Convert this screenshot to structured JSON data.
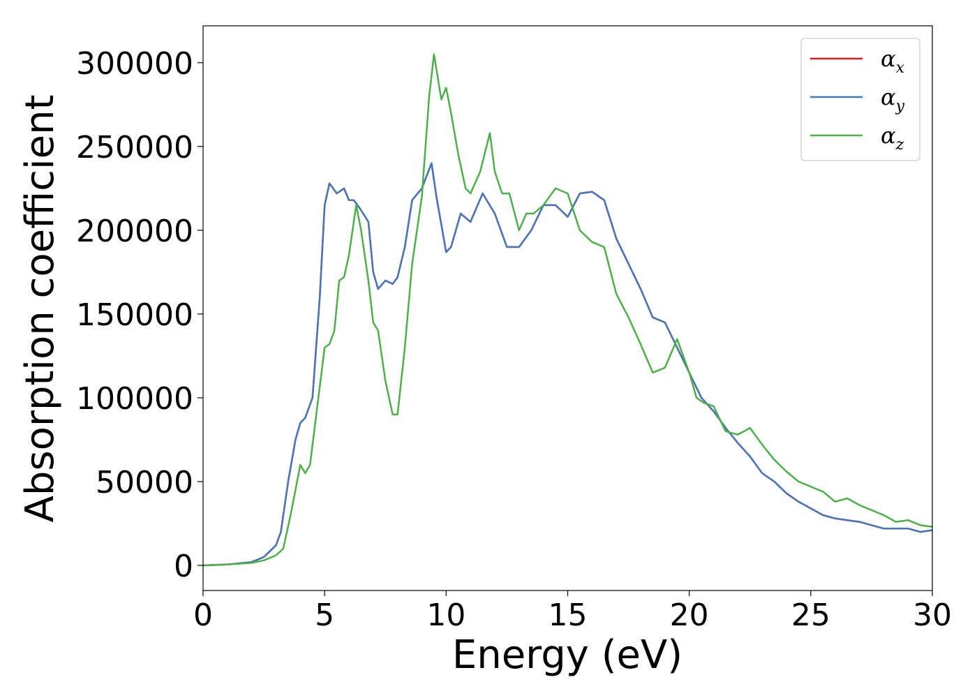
{
  "chart_data": {
    "type": "line",
    "xlabel": "Energy (eV)",
    "ylabel": "Absorption coefficient",
    "xlim": [
      0,
      30
    ],
    "ylim": [
      -15000,
      322000
    ],
    "x_ticks": [
      0,
      5,
      10,
      15,
      20,
      25,
      30
    ],
    "y_ticks": [
      0,
      50000,
      100000,
      150000,
      200000,
      250000,
      300000
    ],
    "grid": false,
    "legend_position": "top-right",
    "colors": {
      "alpha_x": "#e41a1c",
      "alpha_y": "#4478b8",
      "alpha_z": "#4daf4a"
    },
    "legend": [
      {
        "base": "α",
        "sub": "x",
        "color": "#e41a1c"
      },
      {
        "base": "α",
        "sub": "y",
        "color": "#4478b8"
      },
      {
        "base": "α",
        "sub": "z",
        "color": "#4daf4a"
      }
    ],
    "series": [
      {
        "key": "alpha_x",
        "x": [
          0,
          1,
          2,
          2.5,
          3,
          3.2,
          3.5,
          3.8,
          4,
          4.2,
          4.5,
          4.8,
          5,
          5.2,
          5.5,
          5.8,
          6,
          6.2,
          6.5,
          6.8,
          7,
          7.2,
          7.5,
          7.8,
          8,
          8.3,
          8.6,
          9,
          9.4,
          9.6,
          10,
          10.2,
          10.6,
          11,
          11.5,
          12,
          12.5,
          13,
          13.5,
          14,
          14.5,
          15,
          15.5,
          16,
          16.5,
          17,
          17.5,
          18,
          18.5,
          19,
          19.5,
          20,
          20.5,
          21,
          21.5,
          22,
          22.5,
          23,
          23.5,
          24,
          24.5,
          25,
          25.5,
          26,
          26.5,
          27,
          27.5,
          28,
          28.5,
          29,
          29.5,
          30
        ],
        "values": [
          0,
          500,
          2000,
          5000,
          12000,
          20000,
          50000,
          75000,
          85000,
          88000,
          100000,
          160000,
          215000,
          228000,
          222000,
          225000,
          218000,
          218000,
          212000,
          205000,
          175000,
          165000,
          170000,
          168000,
          172000,
          190000,
          218000,
          225000,
          240000,
          220000,
          187000,
          190000,
          210000,
          205000,
          222000,
          210000,
          190000,
          190000,
          200000,
          215000,
          215000,
          208000,
          222000,
          223000,
          218000,
          195000,
          180000,
          165000,
          148000,
          145000,
          130000,
          115000,
          100000,
          92000,
          82000,
          73000,
          65000,
          55000,
          50000,
          43000,
          38000,
          34000,
          30000,
          28000,
          27000,
          26000,
          24000,
          22000,
          22000,
          22000,
          20000,
          21000
        ]
      },
      {
        "key": "alpha_y",
        "x": [
          0,
          1,
          2,
          2.5,
          3,
          3.2,
          3.5,
          3.8,
          4,
          4.2,
          4.5,
          4.8,
          5,
          5.2,
          5.5,
          5.8,
          6,
          6.2,
          6.5,
          6.8,
          7,
          7.2,
          7.5,
          7.8,
          8,
          8.3,
          8.6,
          9,
          9.4,
          9.6,
          10,
          10.2,
          10.6,
          11,
          11.5,
          12,
          12.5,
          13,
          13.5,
          14,
          14.5,
          15,
          15.5,
          16,
          16.5,
          17,
          17.5,
          18,
          18.5,
          19,
          19.5,
          20,
          20.5,
          21,
          21.5,
          22,
          22.5,
          23,
          23.5,
          24,
          24.5,
          25,
          25.5,
          26,
          26.5,
          27,
          27.5,
          28,
          28.5,
          29,
          29.5,
          30
        ],
        "values": [
          0,
          500,
          2000,
          5000,
          12000,
          20000,
          50000,
          75000,
          85000,
          88000,
          100000,
          160000,
          215000,
          228000,
          222000,
          225000,
          218000,
          218000,
          212000,
          205000,
          175000,
          165000,
          170000,
          168000,
          172000,
          190000,
          218000,
          225000,
          240000,
          220000,
          187000,
          190000,
          210000,
          205000,
          222000,
          210000,
          190000,
          190000,
          200000,
          215000,
          215000,
          208000,
          222000,
          223000,
          218000,
          195000,
          180000,
          165000,
          148000,
          145000,
          130000,
          115000,
          100000,
          92000,
          82000,
          73000,
          65000,
          55000,
          50000,
          43000,
          38000,
          34000,
          30000,
          28000,
          27000,
          26000,
          24000,
          22000,
          22000,
          22000,
          20000,
          21000
        ]
      },
      {
        "key": "alpha_z",
        "x": [
          0,
          1,
          2,
          2.5,
          3,
          3.3,
          3.6,
          3.8,
          4,
          4.2,
          4.4,
          4.7,
          5,
          5.2,
          5.4,
          5.6,
          5.8,
          6,
          6.3,
          6.5,
          6.8,
          7,
          7.2,
          7.5,
          7.8,
          8,
          8.3,
          8.6,
          9,
          9.3,
          9.5,
          9.8,
          10,
          10.2,
          10.5,
          10.8,
          11,
          11.4,
          11.8,
          12,
          12.3,
          12.6,
          13,
          13.3,
          13.6,
          14,
          14.5,
          15,
          15.5,
          16,
          16.5,
          17,
          17.5,
          18,
          18.5,
          19,
          19.5,
          20,
          20.3,
          20.6,
          21,
          21.5,
          22,
          22.5,
          23,
          23.5,
          24,
          24.5,
          25,
          25.5,
          26,
          26.5,
          27,
          27.5,
          28,
          28.5,
          29,
          29.5,
          30
        ],
        "values": [
          0,
          500,
          1500,
          3000,
          6000,
          10000,
          30000,
          45000,
          60000,
          55000,
          60000,
          95000,
          130000,
          132000,
          140000,
          170000,
          172000,
          185000,
          215000,
          200000,
          170000,
          145000,
          140000,
          110000,
          90000,
          90000,
          130000,
          180000,
          220000,
          280000,
          305000,
          278000,
          285000,
          270000,
          245000,
          225000,
          222000,
          235000,
          258000,
          235000,
          222000,
          222000,
          200000,
          210000,
          210000,
          215000,
          225000,
          222000,
          200000,
          193000,
          190000,
          162000,
          148000,
          132000,
          115000,
          118000,
          135000,
          115000,
          100000,
          97000,
          95000,
          80000,
          78000,
          82000,
          72000,
          63000,
          56000,
          50000,
          47000,
          44000,
          38000,
          40000,
          36000,
          33000,
          30000,
          26000,
          27000,
          24000,
          23000
        ]
      }
    ]
  }
}
